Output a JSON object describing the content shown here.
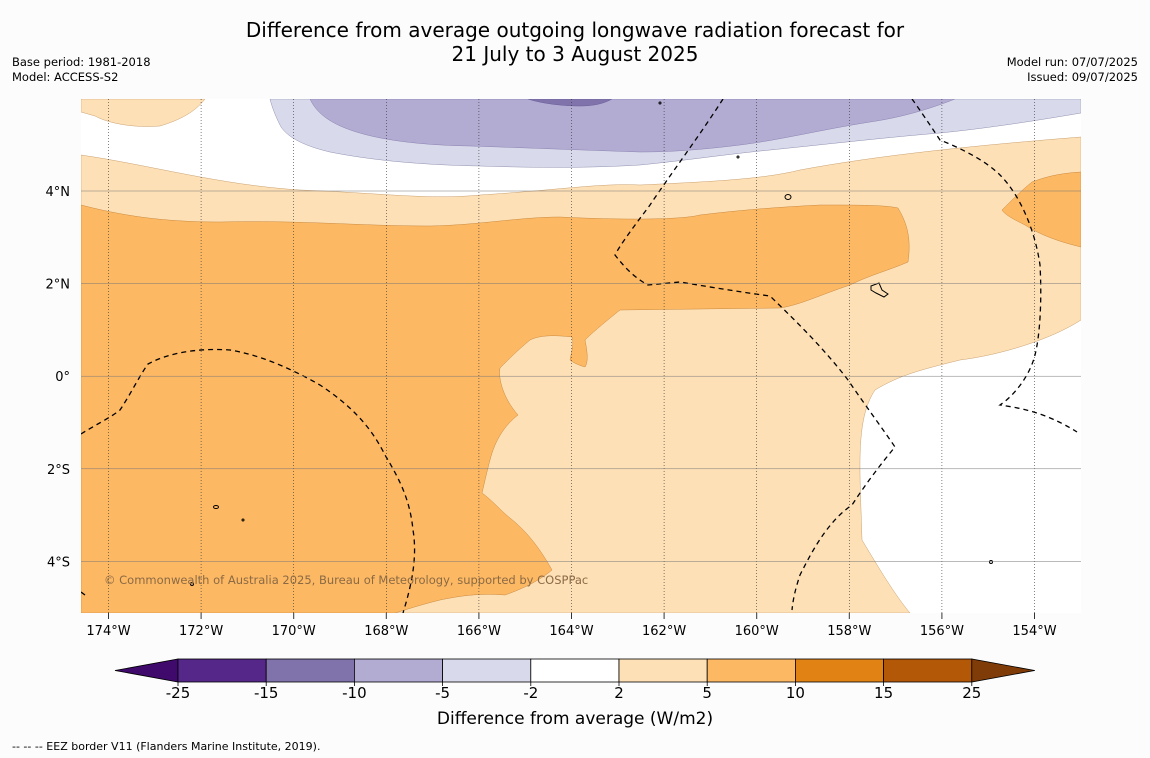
{
  "header": {
    "title_line1": "Difference from average outgoing longwave radiation forecast for",
    "title_line2": "21 July to 3 August 2025",
    "base_period": "Base period: 1981-2018",
    "model": "Model: ACCESS-S2",
    "model_run": "Model run: 07/07/2025",
    "issued": "Issued: 09/07/2025"
  },
  "map": {
    "x_ticks": [
      "174°W",
      "172°W",
      "170°W",
      "168°W",
      "166°W",
      "164°W",
      "162°W",
      "160°W",
      "158°W",
      "156°W",
      "154°W"
    ],
    "y_ticks": [
      "4°N",
      "2°N",
      "0°",
      "2°S",
      "4°S"
    ],
    "copyright": "© Commonwealth of Australia 2025, Bureau of Meteorology, supported by COSPPac",
    "grid": true
  },
  "colorbar": {
    "title": "Difference from average (W/m2)",
    "ticks": [
      "-25",
      "-15",
      "-10",
      "-5",
      "-2",
      "2",
      "5",
      "10",
      "15",
      "25"
    ],
    "colors": [
      "#3f0a6b",
      "#542788",
      "#8073ac",
      "#b2abd2",
      "#d8daeb",
      "#ffffff",
      "#fee0b6",
      "#fdb863",
      "#e08214",
      "#b35806",
      "#7f3b08"
    ]
  },
  "legend": {
    "eez_note": "--  --  -- EEZ border V11 (Flanders Marine Institute, 2019)."
  }
}
